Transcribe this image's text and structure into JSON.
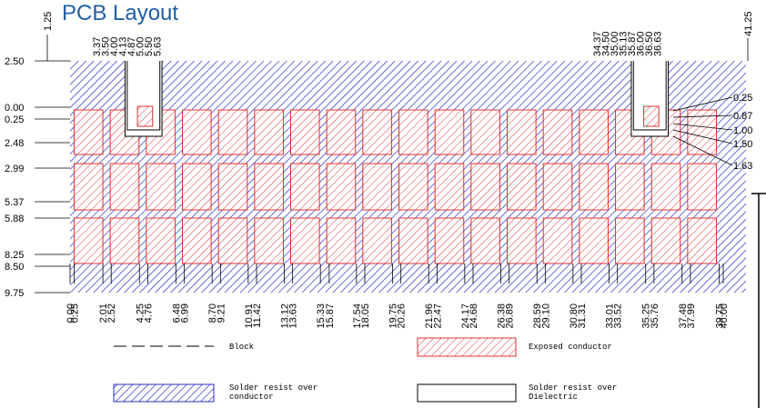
{
  "title": "PCB Layout",
  "top_labels": {
    "left_edge": "1.25",
    "right_edge": "41.25",
    "left_notch": [
      "3.37",
      "3.50",
      "4.00",
      "4.13",
      "4.87",
      "5.00",
      "5.50",
      "5.63"
    ],
    "right_notch": [
      "34.37",
      "34.50",
      "35.00",
      "35.13",
      "35.87",
      "36.00",
      "36.50",
      "36.63"
    ]
  },
  "left_labels": [
    "2.50",
    "0.00",
    "0.25",
    "2.48",
    "2.99",
    "5.37",
    "5.88",
    "8.25",
    "8.50",
    "9.75"
  ],
  "right_labels": [
    "0.25",
    "0.87",
    "1.00",
    "1.50",
    "1.63"
  ],
  "bottom_labels": [
    "0.00",
    "0.25",
    "2.01",
    "2.52",
    "4.25",
    "4.76",
    "6.48",
    "6.99",
    "8.70",
    "9.21",
    "10.91",
    "11.42",
    "13.12",
    "13.63",
    "15.33",
    "15.87",
    "17.54",
    "18.05",
    "19.75",
    "20.26",
    "21.96",
    "22.47",
    "24.17",
    "24.68",
    "26.38",
    "26.89",
    "28.59",
    "29.10",
    "30.80",
    "31.31",
    "33.01",
    "33.52",
    "35.25",
    "35.76",
    "37.48",
    "37.99",
    "39.75",
    "40.00"
  ],
  "legend": [
    {
      "label": [
        "Block"
      ]
    },
    {
      "label": [
        "Exposed conductor"
      ]
    },
    {
      "label": [
        "Solder resist over",
        "conductor"
      ]
    },
    {
      "label": [
        "Solder resist over",
        "Dielectric"
      ]
    }
  ]
}
